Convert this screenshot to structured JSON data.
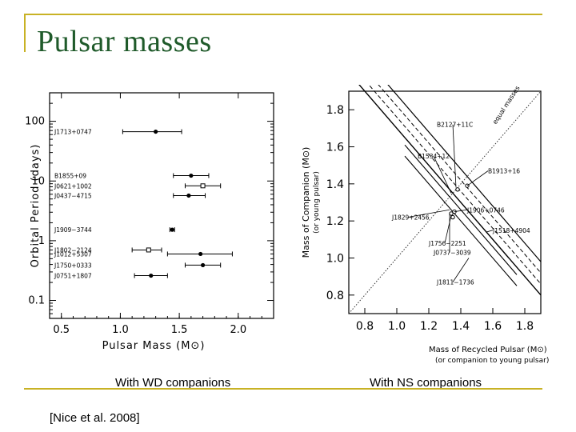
{
  "slide": {
    "title": "Pulsar masses",
    "caption_left": "With WD companions",
    "caption_right": "With NS companions",
    "citation": "[Nice et al. 2008]",
    "accent_color": "#c8b225",
    "title_color": "#1f5a2a"
  },
  "chart_data": [
    {
      "type": "scatter",
      "title": "",
      "xlabel": "Pulsar Mass (M⊙)",
      "ylabel": "Orbital Period (days)",
      "xlim": [
        0.4,
        2.3
      ],
      "y_scale": "log",
      "ylim": [
        0.05,
        300
      ],
      "x_ticks": [
        "0.5",
        "1.0",
        "1.5",
        "2.0"
      ],
      "y_ticks": [
        "0.1",
        "1",
        "10",
        "100"
      ],
      "points": [
        {
          "name": "J1713+0747",
          "mass": 1.3,
          "lo": 1.02,
          "hi": 1.52,
          "period": 67,
          "marker": "filled"
        },
        {
          "name": "B1855+09",
          "mass": 1.6,
          "lo": 1.45,
          "hi": 1.75,
          "period": 12.3,
          "marker": "filled"
        },
        {
          "name": "J0621+1002",
          "mass": 1.7,
          "lo": 1.55,
          "hi": 1.85,
          "period": 8.3,
          "marker": "open"
        },
        {
          "name": "J0437−4715",
          "mass": 1.58,
          "lo": 1.45,
          "hi": 1.72,
          "period": 5.7,
          "marker": "filled"
        },
        {
          "name": "J1909−3744",
          "mass": 1.44,
          "lo": 1.42,
          "hi": 1.46,
          "period": 1.53,
          "marker": "filled"
        },
        {
          "name": "J1802−2124",
          "mass": 1.24,
          "lo": 1.1,
          "hi": 1.35,
          "period": 0.7,
          "marker": "open"
        },
        {
          "name": "J1012+5307",
          "mass": 1.68,
          "lo": 1.4,
          "hi": 1.95,
          "period": 0.6,
          "marker": "filled"
        },
        {
          "name": "J1750+0333",
          "mass": 1.7,
          "lo": 1.55,
          "hi": 1.85,
          "period": 0.39,
          "marker": "filled"
        },
        {
          "name": "J0751+1807",
          "mass": 1.26,
          "lo": 1.12,
          "hi": 1.4,
          "period": 0.26,
          "marker": "filled"
        }
      ]
    },
    {
      "type": "scatter",
      "title": "",
      "xlabel": "Mass of Recycled Pulsar (M⊙)",
      "xlabel2": "(or companion to young pulsar)",
      "ylabel": "Mass of Companion (M⊙)",
      "ylabel2": "(or young pulsar)",
      "xlim": [
        0.7,
        1.9
      ],
      "ylim": [
        0.7,
        1.9
      ],
      "x_ticks": [
        "0.8",
        "1.0",
        "1.2",
        "1.4",
        "1.6",
        "1.8"
      ],
      "y_ticks": [
        "0.8",
        "1.0",
        "1.2",
        "1.4",
        "1.6",
        "1.8"
      ],
      "diagonal_label": "equal masses",
      "labels": [
        {
          "name": "B2127+11C",
          "lx": 1.25,
          "ly": 1.72,
          "tx": 1.37,
          "ty": 1.38
        },
        {
          "name": "B1534+12",
          "lx": 1.13,
          "ly": 1.55,
          "tx": 1.34,
          "ty": 1.35
        },
        {
          "name": "B1913+16",
          "lx": 1.57,
          "ly": 1.47,
          "tx": 1.44,
          "ty": 1.39
        },
        {
          "name": "J1829+2456",
          "lx": 0.97,
          "ly": 1.22,
          "tx": 1.33,
          "ty": 1.26
        },
        {
          "name": "J1906+0746",
          "lx": 1.44,
          "ly": 1.26,
          "tx": 1.36,
          "ty": 1.25
        },
        {
          "name": "J1518+4904",
          "lx": 1.6,
          "ly": 1.15,
          "tx": 1.56,
          "ty": 1.14
        },
        {
          "name": "J1756−2251",
          "lx": 1.2,
          "ly": 1.08,
          "tx": 1.34,
          "ty": 1.23
        },
        {
          "name": "J0737−3039",
          "lx": 1.23,
          "ly": 1.03,
          "tx": 1.33,
          "ty": 1.24
        },
        {
          "name": "J1811−1736",
          "lx": 1.25,
          "ly": 0.87,
          "tx": 1.45,
          "ty": 1.0
        }
      ]
    }
  ]
}
